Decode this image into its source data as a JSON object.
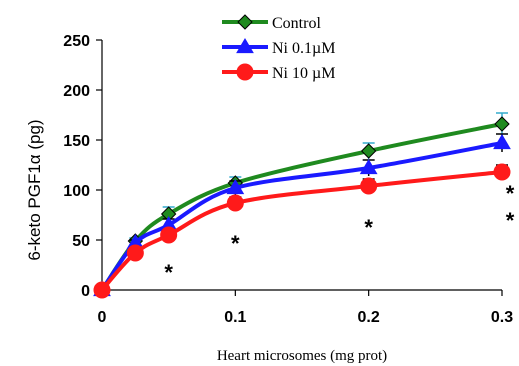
{
  "chart_data": {
    "type": "line",
    "title": "",
    "xlabel": "Heart microsomes (mg prot)",
    "ylabel": "6-keto PGF1α (pg)",
    "xlim": [
      0,
      0.3
    ],
    "ylim": [
      0,
      250
    ],
    "xticks": [
      "0",
      "0.1",
      "0.2",
      "0.3"
    ],
    "yticks": [
      "0",
      "50",
      "100",
      "150",
      "200",
      "250"
    ],
    "grid": false,
    "legend_position": "top-center",
    "series": [
      {
        "name": "Control",
        "color": "#1f8a1f",
        "marker": "diamond",
        "x": [
          0,
          0.025,
          0.05,
          0.1,
          0.2,
          0.3
        ],
        "y": [
          0,
          49,
          76,
          107,
          139,
          166
        ],
        "err": [
          0,
          3,
          7,
          6,
          8,
          11
        ]
      },
      {
        "name": "Ni 0.1µM",
        "color": "#1a1aff",
        "marker": "triangle",
        "x": [
          0,
          0.025,
          0.05,
          0.1,
          0.2,
          0.3
        ],
        "y": [
          0,
          47,
          65,
          102,
          122,
          147
        ],
        "err": [
          0,
          3,
          6,
          7,
          8,
          9
        ]
      },
      {
        "name": "Ni 10 µM",
        "color": "#ff1a1a",
        "marker": "circle",
        "x": [
          0,
          0.025,
          0.05,
          0.1,
          0.2,
          0.3
        ],
        "y": [
          0,
          37,
          55,
          87,
          104,
          118
        ],
        "err": [
          0,
          3,
          5,
          6,
          7,
          7
        ]
      }
    ],
    "annotations": [
      {
        "text": "*",
        "x": 0.05,
        "y": 18
      },
      {
        "text": "*",
        "x": 0.1,
        "y": 47
      },
      {
        "text": "*",
        "x": 0.2,
        "y": 63
      },
      {
        "text": "*",
        "x": 0.3,
        "y": 97
      },
      {
        "text": "*",
        "x": 0.3,
        "y": 70
      }
    ]
  }
}
